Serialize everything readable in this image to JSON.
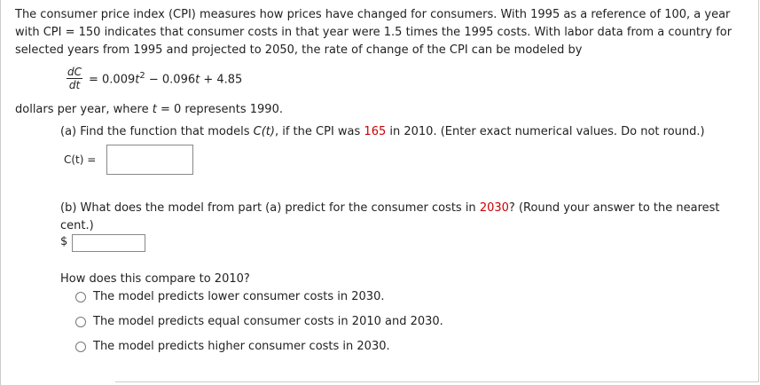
{
  "intro": "The consumer price index (CPI) measures how prices have changed for consumers. With 1995 as a reference of 100, a year with  CPI = 150  indicates that consumer costs in that year were 1.5 times the 1995 costs. With labor data from a country for selected years from 1995 and projected to 2050, the rate of change of the CPI can be modeled by",
  "equation": {
    "numerator": "dC",
    "denominator": "dt",
    "rhs": [
      "= 0.009",
      "t",
      "2",
      " − 0.096",
      "t",
      " + 4.85"
    ]
  },
  "units_line": [
    "dollars per year, where ",
    "t",
    " = 0  represents 1990."
  ],
  "part_a": {
    "prompt": [
      "(a) Find the function that models ",
      "C(t)",
      ",  if the CPI was ",
      "165",
      " in 2010. (Enter exact numerical values. Do not round.)"
    ],
    "input_label": "C(t)  ="
  },
  "part_b": {
    "prompt": [
      "(b) What does the model from part (a) predict for the consumer costs in ",
      "2030",
      "? (Round your answer to the nearest cent.)"
    ],
    "input_label": "$",
    "question": "How does this compare to 2010?",
    "options": [
      "The model predicts lower consumer costs in 2030.",
      "The model predicts equal consumer costs in 2010 and 2030.",
      "The model predicts higher consumer costs in 2030."
    ]
  }
}
